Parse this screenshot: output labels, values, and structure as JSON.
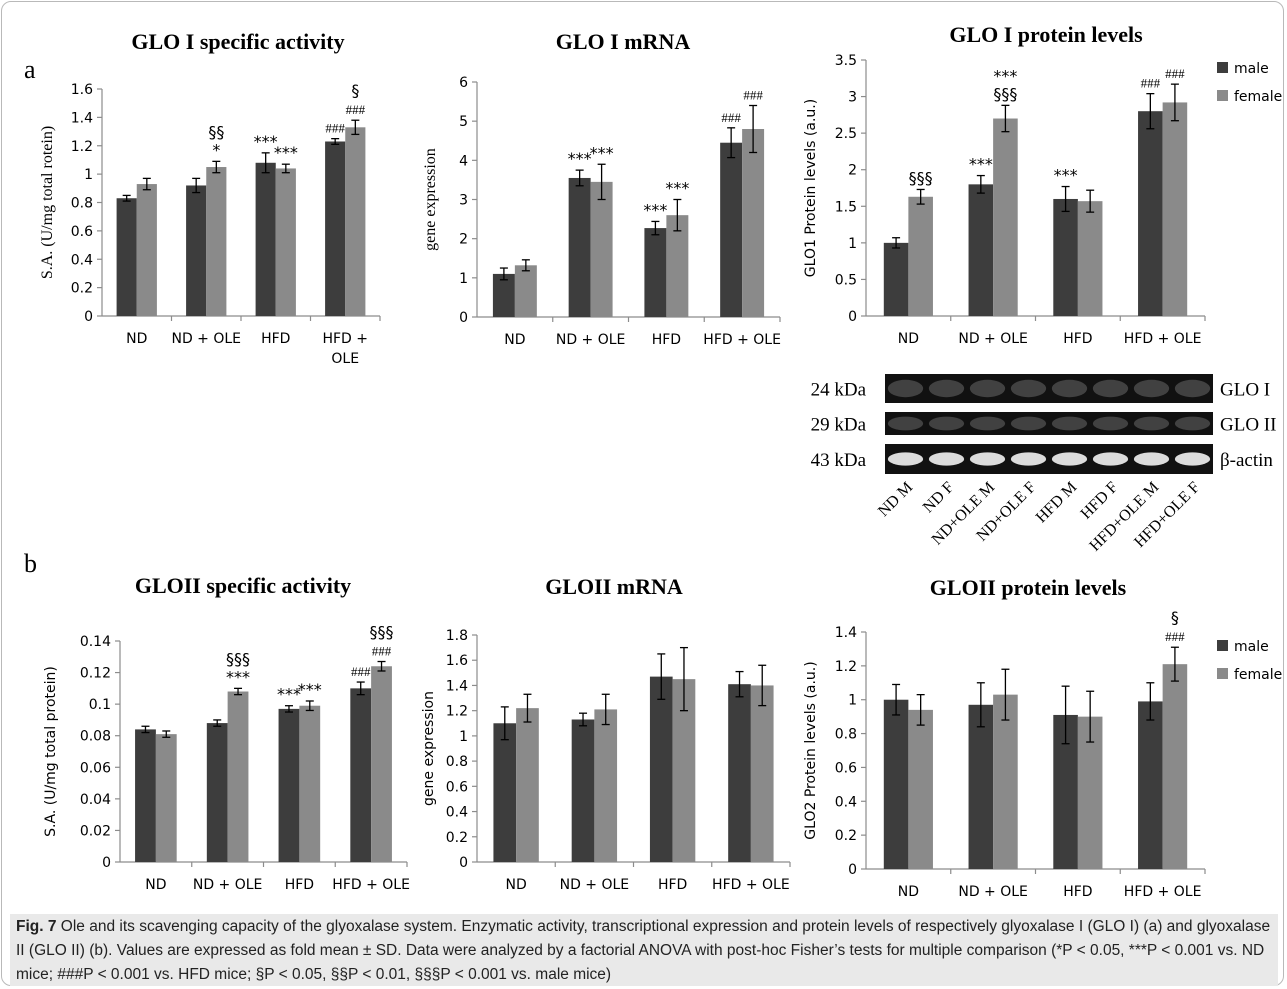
{
  "panel_labels": [
    "a",
    "b"
  ],
  "colors": {
    "male": "#3d3d3d",
    "female": "#8a8a8a",
    "axis": "#8c8c8c",
    "text": "#000000"
  },
  "chart_data": [
    {
      "type": "bar",
      "title": "GLO I specific activity",
      "ylabel": "S.A. (U/mg total rotein)",
      "xlabel": "",
      "categories": [
        "ND",
        "ND + OLE",
        "HFD",
        "HFD + OLE"
      ],
      "ylim": [
        0,
        1.6
      ],
      "yticks": [
        "0",
        "0.2",
        "0.4",
        "0.6",
        "0.8",
        "1",
        "1.2",
        "1.4",
        "1.6"
      ],
      "series": [
        {
          "name": "male",
          "values": [
            0.83,
            0.92,
            1.08,
            1.23
          ],
          "errors": [
            0.02,
            0.05,
            0.07,
            0.02
          ],
          "annotations": [
            "",
            "",
            "***",
            "###"
          ]
        },
        {
          "name": "female",
          "values": [
            0.93,
            1.05,
            1.04,
            1.33
          ],
          "errors": [
            0.04,
            0.04,
            0.03,
            0.05
          ],
          "annotations": [
            "",
            "§§\n*",
            "***",
            "§\n###"
          ]
        }
      ],
      "legend": "none",
      "grid": false
    },
    {
      "type": "bar",
      "title": "GLO I mRNA",
      "ylabel": "gene expression",
      "xlabel": "",
      "categories": [
        "ND",
        "ND + OLE",
        "HFD",
        "HFD + OLE"
      ],
      "ylim": [
        0,
        6
      ],
      "yticks": [
        "0",
        "1",
        "2",
        "3",
        "4",
        "5",
        "6"
      ],
      "series": [
        {
          "name": "male",
          "values": [
            1.1,
            3.55,
            2.27,
            4.45
          ],
          "errors": [
            0.15,
            0.2,
            0.17,
            0.38
          ],
          "annotations": [
            "",
            "***",
            "***",
            "###"
          ]
        },
        {
          "name": "female",
          "values": [
            1.32,
            3.45,
            2.6,
            4.8
          ],
          "errors": [
            0.14,
            0.45,
            0.4,
            0.6
          ],
          "annotations": [
            "",
            "***",
            "***",
            "###"
          ]
        }
      ],
      "legend": "none",
      "grid": false
    },
    {
      "type": "bar",
      "title": "GLO I protein levels",
      "ylabel": "GLO1 Protein levels (a.u.)",
      "xlabel": "",
      "categories": [
        "ND",
        "ND + OLE",
        "HFD",
        "HFD + OLE"
      ],
      "ylim": [
        0,
        3.5
      ],
      "yticks": [
        "0",
        "0.5",
        "1",
        "1.5",
        "2",
        "2.5",
        "3",
        "3.5"
      ],
      "series": [
        {
          "name": "male",
          "values": [
            1.0,
            1.8,
            1.6,
            2.8
          ],
          "errors": [
            0.07,
            0.12,
            0.17,
            0.24
          ],
          "annotations": [
            "",
            "***",
            "***",
            "###"
          ]
        },
        {
          "name": "female",
          "values": [
            1.63,
            2.7,
            1.57,
            2.92
          ],
          "errors": [
            0.1,
            0.18,
            0.15,
            0.25
          ],
          "annotations": [
            "§§§",
            "***\n§§§",
            "",
            "###"
          ]
        }
      ],
      "legend": "top-right",
      "grid": false
    },
    {
      "type": "bar",
      "title": "GLOII specific activity",
      "ylabel": "S.A. (U/mg total protein)",
      "xlabel": "",
      "categories": [
        "ND",
        "ND + OLE",
        "HFD",
        "HFD + OLE"
      ],
      "ylim": [
        0,
        0.14
      ],
      "yticks": [
        "0",
        "0.02",
        "0.04",
        "0.06",
        "0.08",
        "0.1",
        "0.12",
        "0.14"
      ],
      "series": [
        {
          "name": "male",
          "values": [
            0.084,
            0.088,
            0.097,
            0.11
          ],
          "errors": [
            0.002,
            0.002,
            0.002,
            0.004
          ],
          "annotations": [
            "",
            "",
            "***",
            "###"
          ]
        },
        {
          "name": "female",
          "values": [
            0.081,
            0.108,
            0.099,
            0.124
          ],
          "errors": [
            0.002,
            0.002,
            0.003,
            0.003
          ],
          "annotations": [
            "",
            "§§§\n***",
            "***",
            "§§§\n###"
          ]
        }
      ],
      "legend": "none",
      "grid": false
    },
    {
      "type": "bar",
      "title": "GLOII mRNA",
      "ylabel": "gene expression",
      "xlabel": "",
      "categories": [
        "ND",
        "ND + OLE",
        "HFD",
        "HFD + OLE"
      ],
      "ylim": [
        0,
        1.8
      ],
      "yticks": [
        "0",
        "0.2",
        "0.4",
        "0.6",
        "0.8",
        "1",
        "1.2",
        "1.4",
        "1.6",
        "1.8"
      ],
      "series": [
        {
          "name": "male",
          "values": [
            1.1,
            1.13,
            1.47,
            1.41
          ],
          "errors": [
            0.13,
            0.05,
            0.18,
            0.1
          ],
          "annotations": [
            "",
            "",
            "",
            ""
          ]
        },
        {
          "name": "female",
          "values": [
            1.22,
            1.21,
            1.45,
            1.4
          ],
          "errors": [
            0.11,
            0.12,
            0.25,
            0.16
          ],
          "annotations": [
            "",
            "",
            "",
            ""
          ]
        }
      ],
      "legend": "none",
      "grid": false
    },
    {
      "type": "bar",
      "title": "GLOII protein levels",
      "ylabel": "GLO2 Protein levels (a.u.)",
      "xlabel": "",
      "categories": [
        "ND",
        "ND + OLE",
        "HFD",
        "HFD + OLE"
      ],
      "ylim": [
        0,
        1.4
      ],
      "yticks": [
        "0",
        "0.2",
        "0.4",
        "0.6",
        "0.8",
        "1",
        "1.2",
        "1.4"
      ],
      "series": [
        {
          "name": "male",
          "values": [
            1.0,
            0.97,
            0.91,
            0.99
          ],
          "errors": [
            0.09,
            0.13,
            0.17,
            0.11
          ],
          "annotations": [
            "",
            "",
            "",
            ""
          ]
        },
        {
          "name": "female",
          "values": [
            0.94,
            1.03,
            0.9,
            1.21
          ],
          "errors": [
            0.09,
            0.15,
            0.15,
            0.1
          ],
          "annotations": [
            "",
            "",
            "",
            "§\n###"
          ]
        }
      ],
      "legend": "right",
      "grid": false
    }
  ],
  "blot": {
    "rows": [
      {
        "kda": "24 kDa",
        "protein": "GLO I"
      },
      {
        "kda": "29 kDa",
        "protein": "GLO II"
      },
      {
        "kda": "43 kDa",
        "protein": "β-actin"
      }
    ],
    "lanes": [
      "ND M",
      "ND F",
      "ND+OLE M",
      "ND+OLE F",
      "HFD M",
      "HFD F",
      "HFD+OLE M",
      "HFD+OLE F"
    ]
  },
  "caption": {
    "fig_label": "Fig. 7",
    "text": "Ole and its scavenging capacity of the glyoxalase system. Enzymatic activity, transcriptional expression and protein levels of respectively glyoxalase I (GLO I) (a) and glyoxalase II (GLO II) (b). Values are expressed as fold mean ± SD. Data were analyzed by a factorial ANOVA with post-hoc Fisher’s tests for multiple comparison (*P < 0.05, ***P < 0.001 vs. ND mice; ###P < 0.001 vs. HFD mice; §P < 0.05, §§P < 0.01, §§§P < 0.001 vs. male mice)"
  }
}
